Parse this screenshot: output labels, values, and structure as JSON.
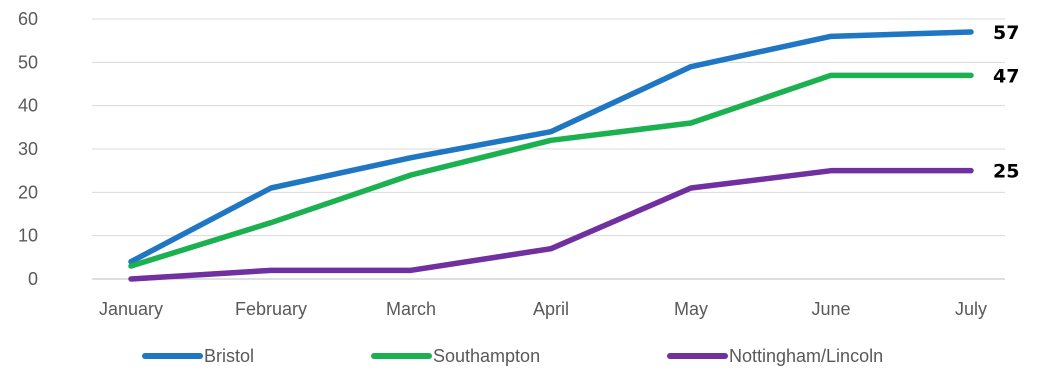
{
  "chart_data": {
    "type": "line",
    "title": "",
    "xlabel": "",
    "ylabel": "",
    "categories": [
      "January",
      "February",
      "March",
      "April",
      "May",
      "June",
      "July"
    ],
    "ylim": [
      0,
      60
    ],
    "yticks": [
      0,
      10,
      20,
      30,
      40,
      50,
      60
    ],
    "grid": true,
    "legend": "bottom",
    "series": [
      {
        "name": "Bristol",
        "color": "#1f77c4",
        "values": [
          4,
          21,
          28,
          34,
          49,
          56,
          57
        ],
        "end_label": "57"
      },
      {
        "name": "Southampton",
        "color": "#1bb150",
        "values": [
          3,
          13,
          24,
          32,
          36,
          47,
          47
        ],
        "end_label": "47"
      },
      {
        "name": "Nottingham/Lincoln",
        "color": "#7030a0",
        "values": [
          0,
          2,
          2,
          7,
          21,
          25,
          25
        ],
        "end_label": "25"
      }
    ]
  }
}
